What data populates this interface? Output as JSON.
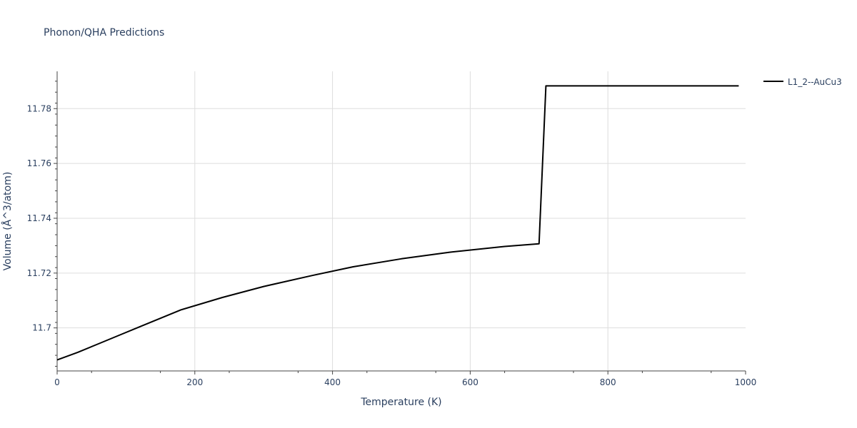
{
  "chart_data": {
    "type": "line",
    "title": "Phonon/QHA Predictions",
    "xlabel": "Temperature (K)",
    "ylabel": "Volume (Å^3/atom)",
    "xlim": [
      0,
      1000
    ],
    "ylim": [
      11.6843,
      11.7936
    ],
    "xticks": [
      "0",
      "200",
      "400",
      "600",
      "800",
      "1000"
    ],
    "yticks": [
      "11.7",
      "11.72",
      "11.74",
      "11.76",
      "11.78"
    ],
    "grid": true,
    "legend_position": "top-right",
    "series": [
      {
        "name": "L1_2--AuCu3",
        "color": "#000000",
        "x": [
          0,
          30,
          60,
          90,
          120,
          150,
          180,
          240,
          300,
          370,
          430,
          500,
          570,
          650,
          700,
          710,
          990
        ],
        "y": [
          11.6883,
          11.6911,
          11.6942,
          11.6973,
          11.7004,
          11.7035,
          11.7066,
          11.7111,
          11.7151,
          11.7191,
          11.7223,
          11.7252,
          11.7276,
          11.7297,
          11.7307,
          11.7883,
          11.7883
        ]
      }
    ]
  }
}
